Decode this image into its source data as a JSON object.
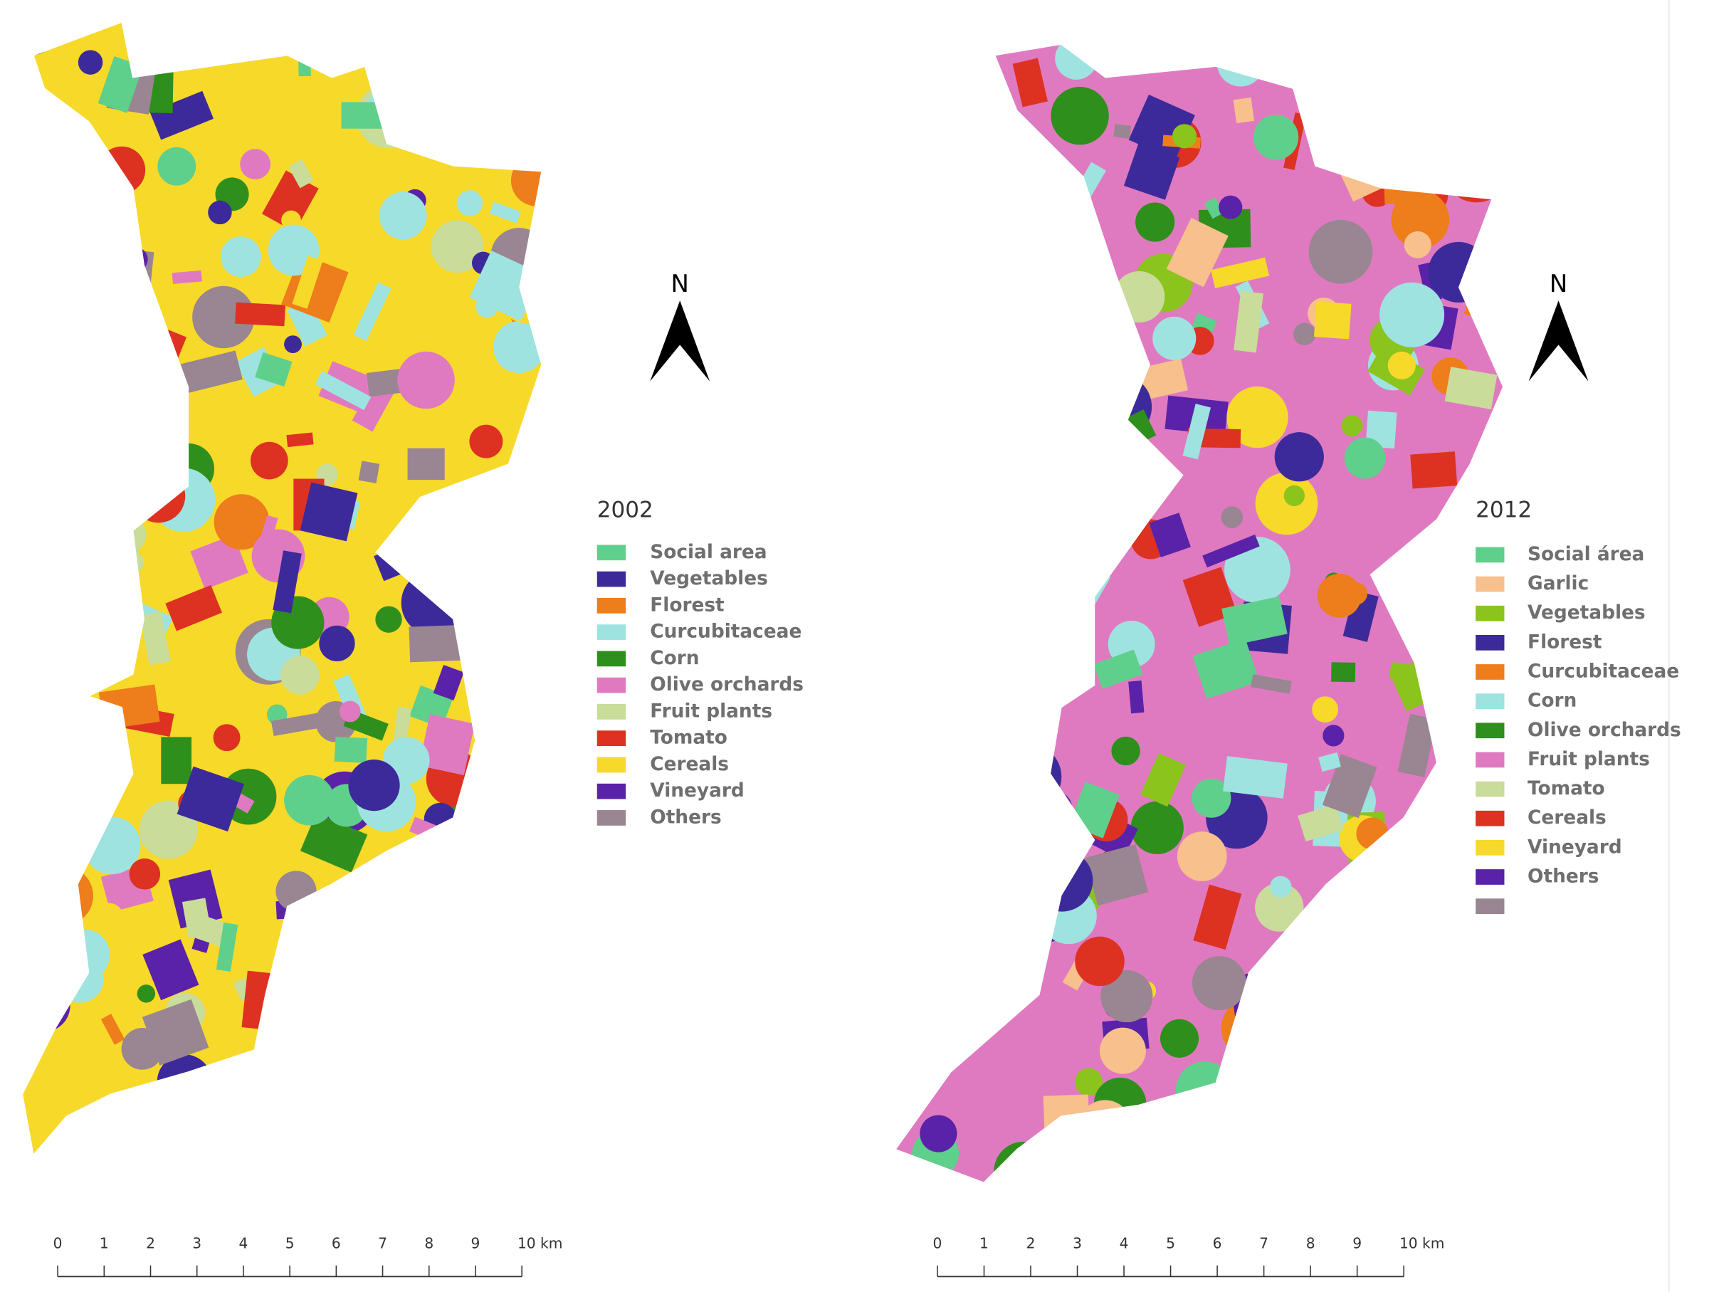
{
  "maps": [
    {
      "legend": {
        "title": "2002",
        "items": [
          {
            "label": "Social area",
            "color": "#5fcf8c"
          },
          {
            "label": "Vegetables",
            "color": "#3d2a9a"
          },
          {
            "label": "Florest",
            "color": "#ee7d1b"
          },
          {
            "label": "Curcubitaceae",
            "color": "#9ee3e0"
          },
          {
            "label": "Corn",
            "color": "#2f8f1c"
          },
          {
            "label": "Olive orchards",
            "color": "#e07ac0"
          },
          {
            "label": "Fruit plants",
            "color": "#c9dc9a"
          },
          {
            "label": "Tomato",
            "color": "#dd3222"
          },
          {
            "label": "Cereals",
            "color": "#f7d92a"
          },
          {
            "label": "Vineyard",
            "color": "#5a22a8"
          },
          {
            "label": "Others",
            "color": "#9a8592"
          }
        ]
      },
      "north": "N",
      "scale": [
        "0",
        "1",
        "2",
        "3",
        "4",
        "5",
        "6",
        "7",
        "8",
        "9",
        "10 km"
      ]
    },
    {
      "legend": {
        "title": "2012",
        "items": [
          {
            "label": "Social área",
            "color": "#5fcf8c"
          },
          {
            "label": "Garlic",
            "color": "#f7c08c"
          },
          {
            "label": "Vegetables",
            "color": "#8ac41c"
          },
          {
            "label": "Florest",
            "color": "#3d2a9a"
          },
          {
            "label": "Curcubitaceae",
            "color": "#ee7d1b"
          },
          {
            "label": "Corn",
            "color": "#9ee3e0"
          },
          {
            "label": "Olive orchards",
            "color": "#2f8f1c"
          },
          {
            "label": "Fruit plants",
            "color": "#e07ac0"
          },
          {
            "label": "Tomato",
            "color": "#c9dc9a"
          },
          {
            "label": "Cereals",
            "color": "#dd3222"
          },
          {
            "label": "Vineyard",
            "color": "#f7d92a"
          },
          {
            "label": "Others",
            "color": "#5a22a8"
          },
          {
            "label": "",
            "color": "#9a8592"
          }
        ]
      },
      "north": "N",
      "scale": [
        "0",
        "1",
        "2",
        "3",
        "4",
        "5",
        "6",
        "7",
        "8",
        "9",
        "10 km"
      ]
    }
  ]
}
